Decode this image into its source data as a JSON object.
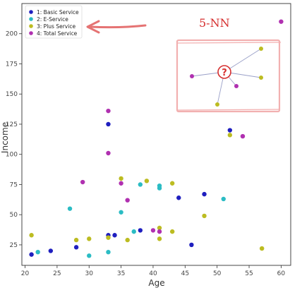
{
  "chart_data": {
    "type": "scatter",
    "xlabel": "Age",
    "ylabel": "Income",
    "xlim": [
      19.5,
      61.5
    ],
    "ylim": [
      8,
      225
    ],
    "xticks": [
      20,
      25,
      30,
      35,
      40,
      45,
      50,
      55,
      60
    ],
    "yticks": [
      25,
      50,
      75,
      100,
      125,
      150,
      175,
      200
    ],
    "grid": false,
    "legend_position": "top-left",
    "series": [
      {
        "name": "1: Basic Service",
        "color": "#1f1fbf",
        "points": [
          [
            21,
            17
          ],
          [
            24,
            20
          ],
          [
            28,
            23
          ],
          [
            33,
            125
          ],
          [
            33,
            33
          ],
          [
            34,
            33
          ],
          [
            38,
            37
          ],
          [
            44,
            64
          ],
          [
            46,
            25
          ],
          [
            48,
            67
          ],
          [
            52,
            120
          ]
        ]
      },
      {
        "name": "2: E-Service",
        "color": "#2bbcc4",
        "points": [
          [
            22,
            19
          ],
          [
            27,
            55
          ],
          [
            30,
            16
          ],
          [
            33,
            19
          ],
          [
            35,
            52
          ],
          [
            37,
            36
          ],
          [
            38,
            75
          ],
          [
            41,
            74
          ],
          [
            41,
            72
          ],
          [
            51,
            63
          ]
        ]
      },
      {
        "name": "3: Plus Service",
        "color": "#bcbc21",
        "points": [
          [
            21,
            33
          ],
          [
            28,
            29
          ],
          [
            30,
            30
          ],
          [
            33,
            31
          ],
          [
            35,
            80
          ],
          [
            36,
            29
          ],
          [
            39,
            78
          ],
          [
            41,
            39
          ],
          [
            41,
            30
          ],
          [
            43,
            76
          ],
          [
            43,
            36
          ],
          [
            48,
            49
          ],
          [
            52,
            116
          ],
          [
            57,
            22
          ]
        ]
      },
      {
        "name": "4: Total Service",
        "color": "#b030b0",
        "points": [
          [
            29,
            77
          ],
          [
            33,
            136
          ],
          [
            33,
            101
          ],
          [
            35,
            76
          ],
          [
            36,
            62
          ],
          [
            40,
            37
          ],
          [
            41,
            36
          ],
          [
            54,
            115
          ],
          [
            60,
            210
          ]
        ]
      }
    ],
    "annotation": {
      "label": "5-NN",
      "color": "#d62f2f",
      "query_symbol": "?",
      "neighbor_colors": [
        "#bcbc21",
        "#bcbc21",
        "#bcbc21",
        "#b030b0",
        "#b030b0"
      ]
    }
  }
}
